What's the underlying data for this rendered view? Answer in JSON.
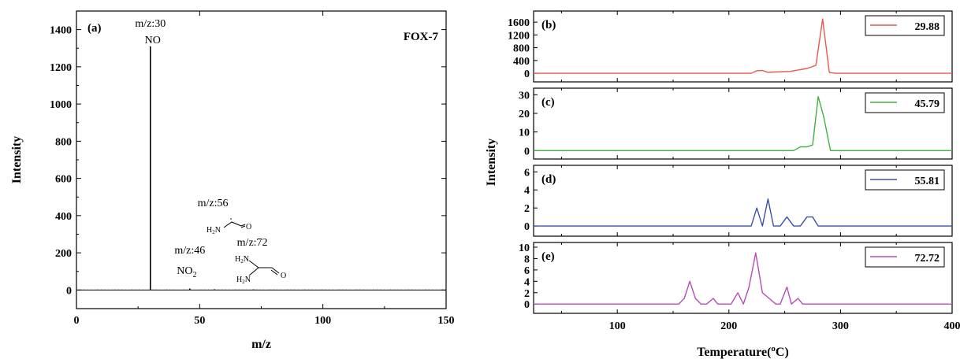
{
  "chart_data": [
    {
      "type": "bar",
      "panel": "(a)",
      "title": "FOX-7",
      "xlabel": "m/z",
      "ylabel": "Intensity",
      "xlim": [
        0,
        150
      ],
      "ylim": [
        -100,
        1500
      ],
      "xticks": [
        "0",
        "50",
        "100",
        "150"
      ],
      "yticks": [
        "0",
        "200",
        "400",
        "600",
        "800",
        "1000",
        "1200",
        "1400"
      ],
      "peaks": [
        {
          "x": 30,
          "y": 1310
        },
        {
          "x": 46,
          "y": 8
        },
        {
          "x": 56,
          "y": 4
        },
        {
          "x": 72,
          "y": 3
        }
      ],
      "annotations": [
        {
          "label": "m/z:30",
          "species": "NO",
          "x": 30
        },
        {
          "label": "m/z:46",
          "species": "NO",
          "subscript": "2",
          "x": 46
        },
        {
          "label": "m/z:56",
          "x": 56,
          "atoms": [
            "H",
            "2",
            "N",
            "O"
          ]
        },
        {
          "label": "m/z:72",
          "x": 72,
          "atoms": [
            "H",
            "2",
            "N",
            "H",
            "2",
            "N",
            "O"
          ]
        }
      ],
      "grid": false
    },
    {
      "type": "line",
      "xlabel": "Temperature(",
      "xlabel_sup": "o",
      "xlabel_end": "C)",
      "ylabel": "Intensity",
      "xlim": [
        25,
        400
      ],
      "xticks": [
        "100",
        "200",
        "300",
        "400"
      ],
      "panels": [
        {
          "panel": "(b)",
          "legend": "29.88",
          "color": "#e8594c",
          "ylim": [
            -120,
            1800
          ],
          "yticks": [
            "0",
            "400",
            "800",
            "1200",
            "1600"
          ],
          "x": [
            25,
            220,
            225,
            230,
            235,
            240,
            255,
            270,
            278,
            284,
            290,
            295,
            400
          ],
          "y": [
            0,
            0,
            80,
            90,
            30,
            40,
            60,
            150,
            250,
            1700,
            30,
            0,
            0
          ]
        },
        {
          "panel": "(c)",
          "legend": "45.79",
          "color": "#3fb23f",
          "ylim": [
            -2,
            31
          ],
          "yticks": [
            "0",
            "10",
            "20",
            "30"
          ],
          "x": [
            25,
            258,
            264,
            270,
            275,
            280,
            285,
            291,
            400
          ],
          "y": [
            0,
            0,
            2,
            2,
            3,
            29,
            18,
            0,
            0
          ],
          "legend_label": "45.79"
        },
        {
          "panel": "(d)",
          "legend": "55.81",
          "color": "#3b4fa8",
          "ylim": [
            -0.6,
            6.2
          ],
          "yticks": [
            "0",
            "2",
            "4",
            "6"
          ],
          "x": [
            25,
            220,
            225,
            230,
            235,
            240,
            246,
            252,
            258,
            264,
            270,
            275,
            280,
            400
          ],
          "y": [
            0,
            0,
            2,
            0,
            3,
            0,
            0,
            1,
            0,
            0,
            1,
            1,
            0,
            0
          ]
        },
        {
          "panel": "(e)",
          "legend": "72.72",
          "color": "#b84cb6",
          "ylim": [
            -0.8,
            10
          ],
          "yticks": [
            "0",
            "2",
            "4",
            "6",
            "8",
            "10"
          ],
          "x": [
            25,
            155,
            160,
            165,
            170,
            175,
            180,
            186,
            190,
            196,
            202,
            208,
            213,
            218,
            224,
            230,
            236,
            242,
            246,
            252,
            256,
            262,
            266,
            270,
            400
          ],
          "y": [
            0,
            0,
            1,
            4,
            1,
            0,
            0,
            1,
            0,
            0,
            0,
            2,
            0,
            3,
            9,
            2,
            1,
            0,
            0,
            3,
            0,
            1,
            0,
            0,
            0
          ]
        }
      ]
    }
  ]
}
